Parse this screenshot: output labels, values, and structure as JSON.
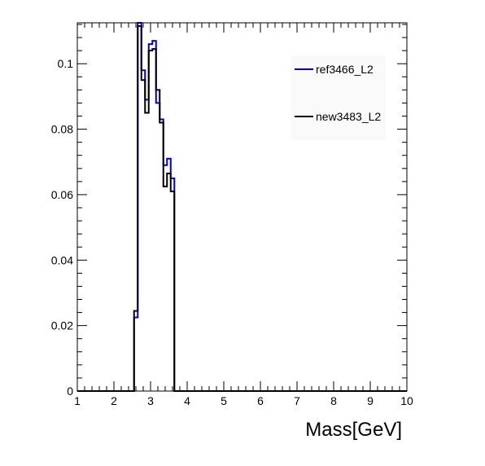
{
  "chart_data": {
    "type": "line",
    "title": "",
    "xlabel": "Mass[GeV]",
    "ylabel": "",
    "xlim": [
      1,
      10
    ],
    "ylim": [
      0,
      0.1125
    ],
    "grid": false,
    "legend_position": "top-right",
    "x_ticks": [
      "1",
      "2",
      "3",
      "4",
      "5",
      "6",
      "7",
      "8",
      "9",
      "10"
    ],
    "y_ticks": [
      "0",
      "0.02",
      "0.04",
      "0.06",
      "0.08",
      "0.1"
    ],
    "bin_edges": [
      2.55,
      2.65,
      2.75,
      2.85,
      2.95,
      3.05,
      3.15,
      3.25,
      3.35,
      3.45,
      3.55,
      3.65
    ],
    "series": [
      {
        "name": "ref3466_L2",
        "color": "#0000cc",
        "values": [
          0.0225,
          0.115,
          0.098,
          0.089,
          0.106,
          0.107,
          0.088,
          0.083,
          0.069,
          0.071,
          0.065
        ]
      },
      {
        "name": "new3483_L2",
        "color": "#000000",
        "values": [
          0.0245,
          0.1115,
          0.095,
          0.085,
          0.104,
          0.1045,
          0.092,
          0.082,
          0.0625,
          0.0665,
          0.061
        ]
      }
    ]
  }
}
